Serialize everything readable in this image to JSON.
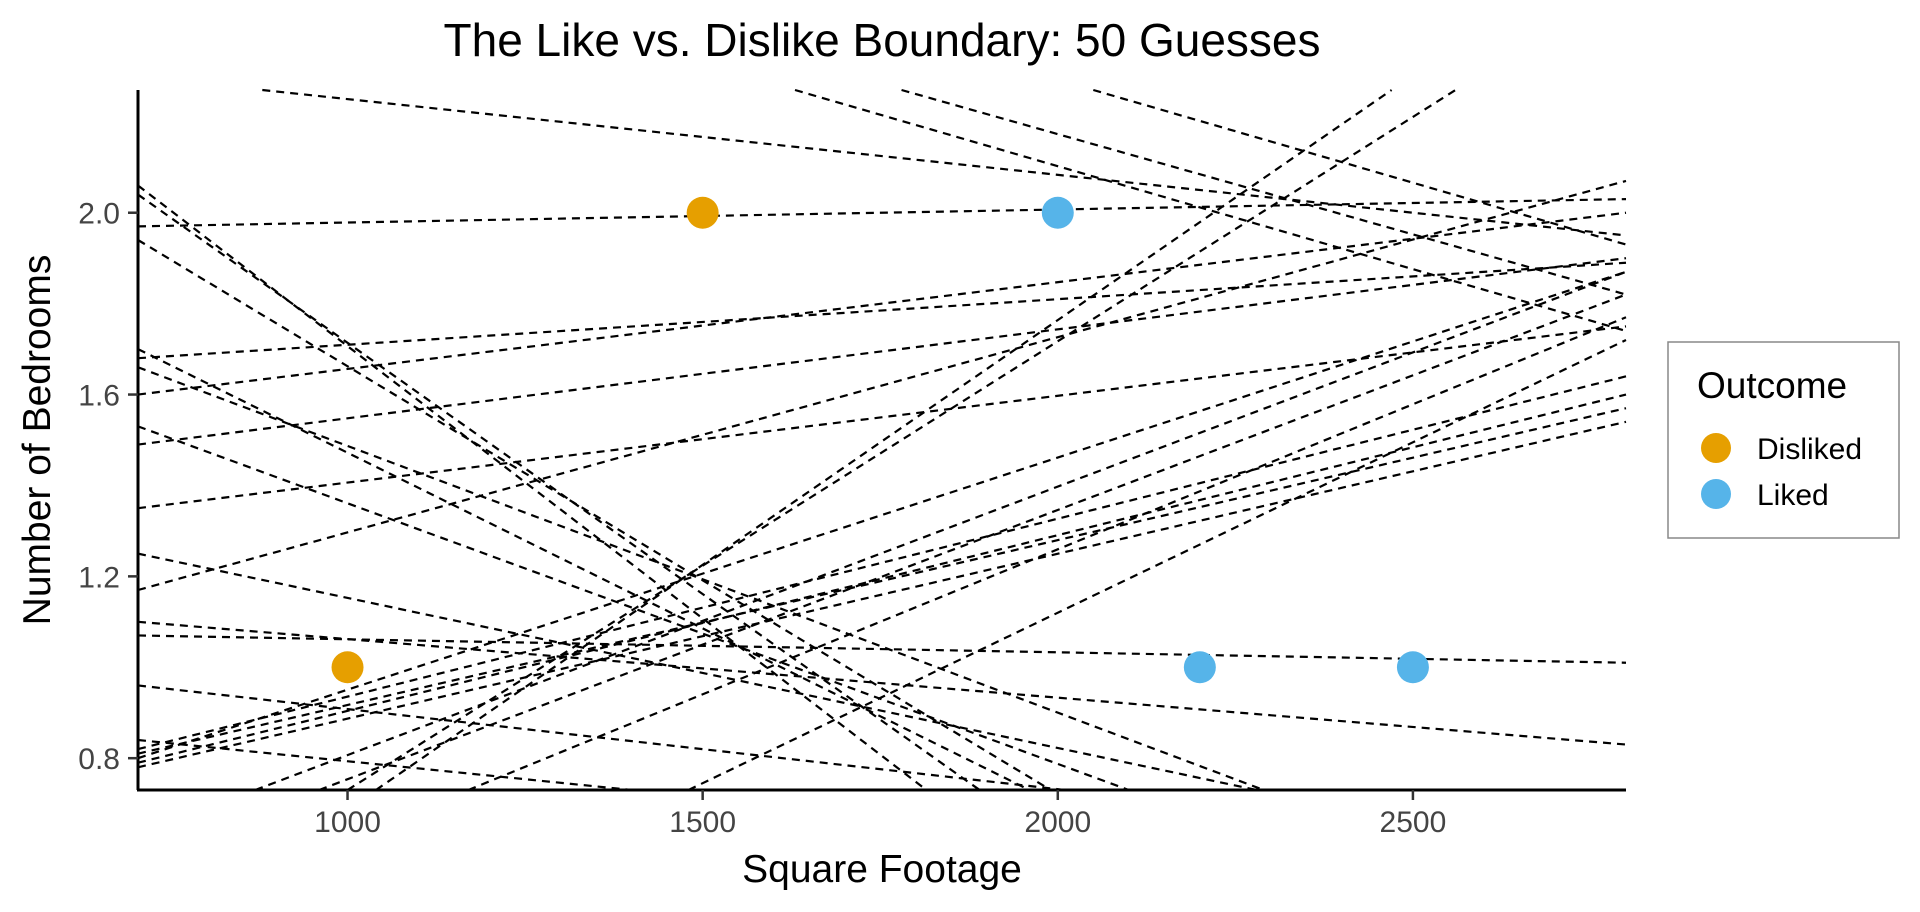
{
  "chart_data": {
    "type": "scatter",
    "title": "The Like vs. Dislike Boundary: 50 Guesses",
    "xlabel": "Square Footage",
    "ylabel": "Number of Bedrooms",
    "xlim": [
      705,
      2800
    ],
    "ylim": [
      0.73,
      2.27
    ],
    "x_ticks": [
      1000,
      1500,
      2000,
      2500
    ],
    "y_ticks": [
      0.8,
      1.2,
      1.6,
      2.0
    ],
    "x_tick_labels": [
      "1000",
      "1500",
      "2000",
      "2500"
    ],
    "y_tick_labels": [
      "0.8",
      "1.2",
      "1.6",
      "2.0"
    ],
    "grid": false,
    "legend": {
      "title": "Outcome",
      "position": "right",
      "entries": [
        {
          "label": "Disliked",
          "color": "#E69F00"
        },
        {
          "label": "Liked",
          "color": "#56B4E9"
        }
      ]
    },
    "points": [
      {
        "x": 1000,
        "y": 1.0,
        "outcome": "Disliked"
      },
      {
        "x": 1500,
        "y": 2.0,
        "outcome": "Disliked"
      },
      {
        "x": 2000,
        "y": 2.0,
        "outcome": "Liked"
      },
      {
        "x": 2200,
        "y": 1.0,
        "outcome": "Liked"
      },
      {
        "x": 2500,
        "y": 1.0,
        "outcome": "Liked"
      }
    ],
    "boundary_lines": [
      {
        "x1": 705,
        "y1": 1.97,
        "x2": 2800,
        "y2": 2.03
      },
      {
        "x1": 705,
        "y1": 1.6,
        "x2": 2800,
        "y2": 2.0
      },
      {
        "x1": 705,
        "y1": 1.68,
        "x2": 2800,
        "y2": 1.89
      },
      {
        "x1": 705,
        "y1": 1.49,
        "x2": 2800,
        "y2": 1.9
      },
      {
        "x1": 705,
        "y1": 1.35,
        "x2": 2800,
        "y2": 1.75
      },
      {
        "x1": 705,
        "y1": 1.17,
        "x2": 2800,
        "y2": 2.07
      },
      {
        "x1": 705,
        "y1": 0.8,
        "x2": 2800,
        "y2": 1.87
      },
      {
        "x1": 705,
        "y1": 0.82,
        "x2": 2800,
        "y2": 1.64
      },
      {
        "x1": 705,
        "y1": 0.79,
        "x2": 2800,
        "y2": 1.6
      },
      {
        "x1": 705,
        "y1": 0.81,
        "x2": 2800,
        "y2": 1.57
      },
      {
        "x1": 705,
        "y1": 0.78,
        "x2": 2800,
        "y2": 1.54
      },
      {
        "x1": 870,
        "y1": 0.73,
        "x2": 2800,
        "y2": 1.87
      },
      {
        "x1": 960,
        "y1": 0.73,
        "x2": 2800,
        "y2": 1.82
      },
      {
        "x1": 1170,
        "y1": 0.73,
        "x2": 2800,
        "y2": 1.77
      },
      {
        "x1": 1480,
        "y1": 0.73,
        "x2": 2800,
        "y2": 1.72
      },
      {
        "x1": 1000,
        "y1": 0.73,
        "x2": 2560,
        "y2": 2.27
      },
      {
        "x1": 1040,
        "y1": 0.73,
        "x2": 2470,
        "y2": 2.27
      },
      {
        "x1": 880,
        "y1": 2.27,
        "x2": 2800,
        "y2": 1.95
      },
      {
        "x1": 1630,
        "y1": 2.27,
        "x2": 2800,
        "y2": 1.74
      },
      {
        "x1": 1780,
        "y1": 2.27,
        "x2": 2800,
        "y2": 1.82
      },
      {
        "x1": 2050,
        "y1": 2.27,
        "x2": 2800,
        "y2": 1.93
      },
      {
        "x1": 705,
        "y1": 2.06,
        "x2": 1815,
        "y2": 0.73
      },
      {
        "x1": 705,
        "y1": 2.04,
        "x2": 1890,
        "y2": 0.73
      },
      {
        "x1": 705,
        "y1": 1.94,
        "x2": 1990,
        "y2": 0.73
      },
      {
        "x1": 705,
        "y1": 1.7,
        "x2": 1960,
        "y2": 0.73
      },
      {
        "x1": 705,
        "y1": 1.66,
        "x2": 2290,
        "y2": 0.73
      },
      {
        "x1": 705,
        "y1": 1.53,
        "x2": 2100,
        "y2": 0.73
      },
      {
        "x1": 705,
        "y1": 1.25,
        "x2": 2280,
        "y2": 0.73
      },
      {
        "x1": 705,
        "y1": 1.1,
        "x2": 2800,
        "y2": 0.83
      },
      {
        "x1": 705,
        "y1": 1.07,
        "x2": 2800,
        "y2": 1.01
      },
      {
        "x1": 705,
        "y1": 0.96,
        "x2": 2010,
        "y2": 0.73
      },
      {
        "x1": 705,
        "y1": 0.84,
        "x2": 1400,
        "y2": 0.73
      }
    ]
  }
}
